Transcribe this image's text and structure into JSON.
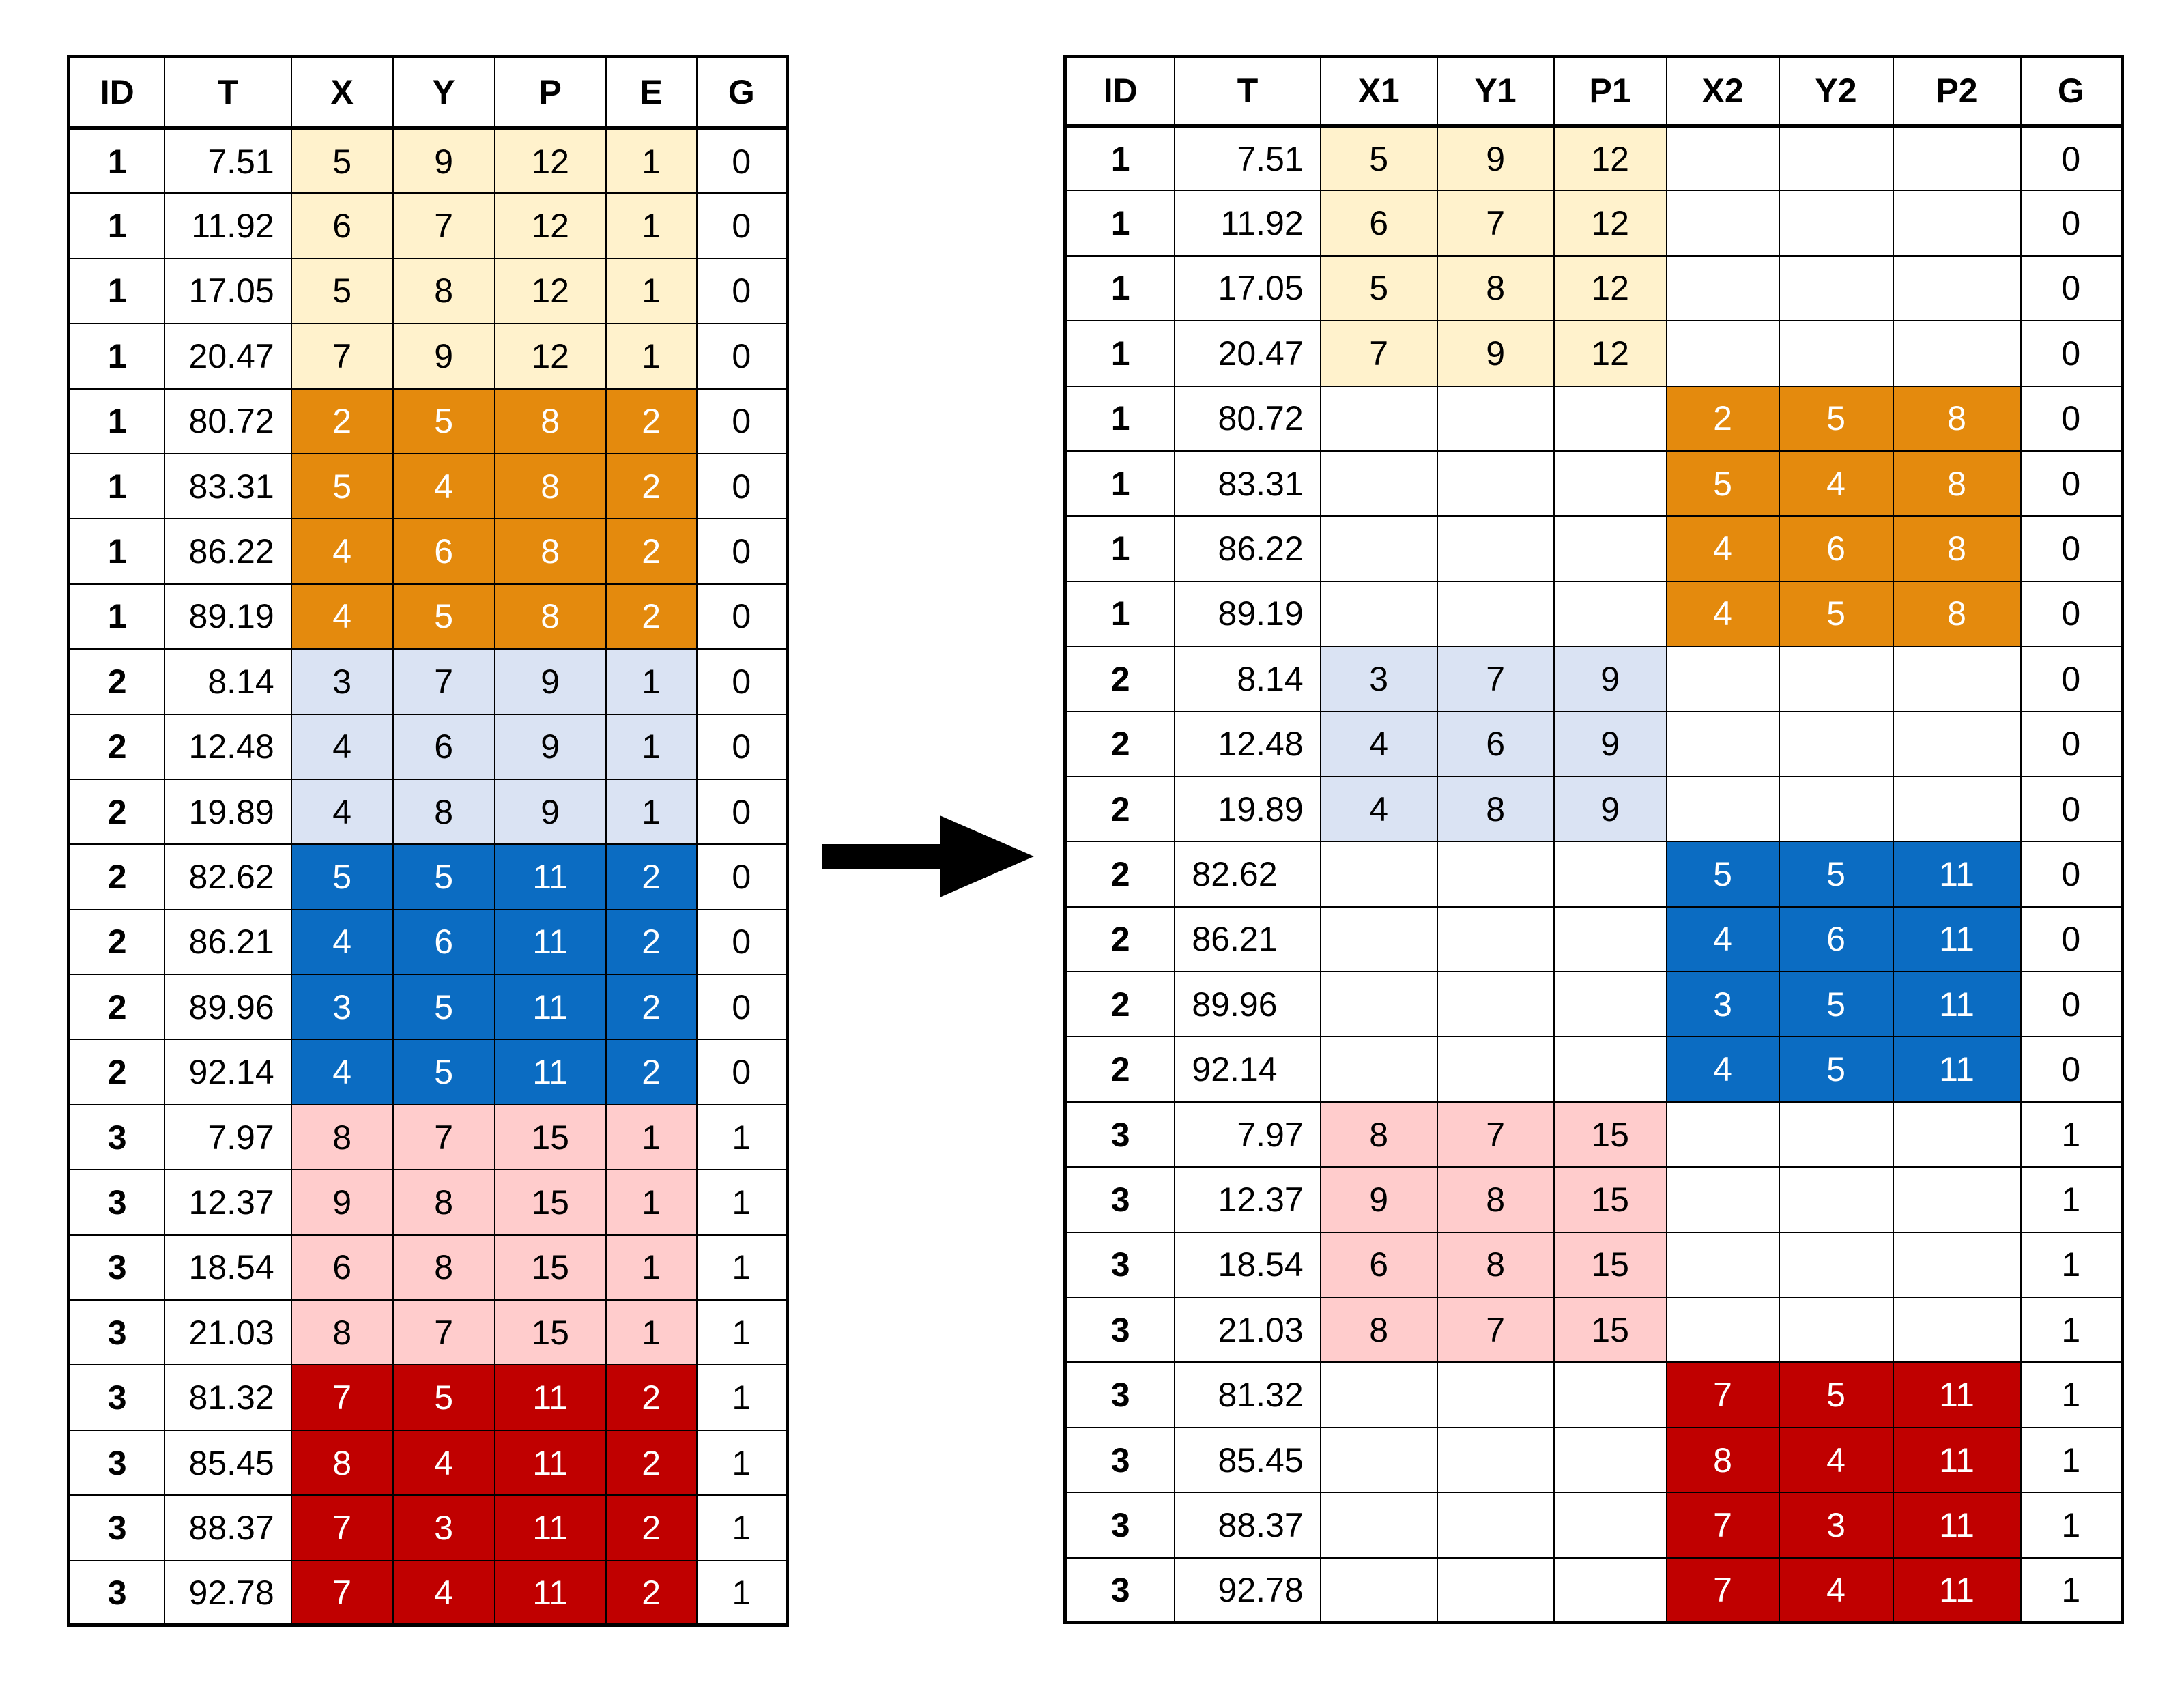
{
  "colors": {
    "pale_yellow": "#fff2cc",
    "orange": "#e48a0d",
    "pale_blue": "#dae3f3",
    "blue": "#0b6cc2",
    "pale_pink": "#ffcccc",
    "red": "#c00000",
    "white_text": "#ffffff",
    "black_text": "#000000"
  },
  "long_table": {
    "headers": [
      "ID",
      "T",
      "X",
      "Y",
      "P",
      "E",
      "G"
    ],
    "rows": [
      {
        "id": "1",
        "t": "7.51",
        "x": "5",
        "y": "9",
        "p": "12",
        "e": "1",
        "g": "0",
        "color": "pale_yellow"
      },
      {
        "id": "1",
        "t": "11.92",
        "x": "6",
        "y": "7",
        "p": "12",
        "e": "1",
        "g": "0",
        "color": "pale_yellow"
      },
      {
        "id": "1",
        "t": "17.05",
        "x": "5",
        "y": "8",
        "p": "12",
        "e": "1",
        "g": "0",
        "color": "pale_yellow"
      },
      {
        "id": "1",
        "t": "20.47",
        "x": "7",
        "y": "9",
        "p": "12",
        "e": "1",
        "g": "0",
        "color": "pale_yellow"
      },
      {
        "id": "1",
        "t": "80.72",
        "x": "2",
        "y": "5",
        "p": "8",
        "e": "2",
        "g": "0",
        "color": "orange"
      },
      {
        "id": "1",
        "t": "83.31",
        "x": "5",
        "y": "4",
        "p": "8",
        "e": "2",
        "g": "0",
        "color": "orange"
      },
      {
        "id": "1",
        "t": "86.22",
        "x": "4",
        "y": "6",
        "p": "8",
        "e": "2",
        "g": "0",
        "color": "orange"
      },
      {
        "id": "1",
        "t": "89.19",
        "x": "4",
        "y": "5",
        "p": "8",
        "e": "2",
        "g": "0",
        "color": "orange"
      },
      {
        "id": "2",
        "t": "8.14",
        "x": "3",
        "y": "7",
        "p": "9",
        "e": "1",
        "g": "0",
        "color": "pale_blue"
      },
      {
        "id": "2",
        "t": "12.48",
        "x": "4",
        "y": "6",
        "p": "9",
        "e": "1",
        "g": "0",
        "color": "pale_blue"
      },
      {
        "id": "2",
        "t": "19.89",
        "x": "4",
        "y": "8",
        "p": "9",
        "e": "1",
        "g": "0",
        "color": "pale_blue"
      },
      {
        "id": "2",
        "t": "82.62",
        "x": "5",
        "y": "5",
        "p": "11",
        "e": "2",
        "g": "0",
        "color": "blue"
      },
      {
        "id": "2",
        "t": "86.21",
        "x": "4",
        "y": "6",
        "p": "11",
        "e": "2",
        "g": "0",
        "color": "blue"
      },
      {
        "id": "2",
        "t": "89.96",
        "x": "3",
        "y": "5",
        "p": "11",
        "e": "2",
        "g": "0",
        "color": "blue"
      },
      {
        "id": "2",
        "t": "92.14",
        "x": "4",
        "y": "5",
        "p": "11",
        "e": "2",
        "g": "0",
        "color": "blue"
      },
      {
        "id": "3",
        "t": "7.97",
        "x": "8",
        "y": "7",
        "p": "15",
        "e": "1",
        "g": "1",
        "color": "pale_pink"
      },
      {
        "id": "3",
        "t": "12.37",
        "x": "9",
        "y": "8",
        "p": "15",
        "e": "1",
        "g": "1",
        "color": "pale_pink"
      },
      {
        "id": "3",
        "t": "18.54",
        "x": "6",
        "y": "8",
        "p": "15",
        "e": "1",
        "g": "1",
        "color": "pale_pink"
      },
      {
        "id": "3",
        "t": "21.03",
        "x": "8",
        "y": "7",
        "p": "15",
        "e": "1",
        "g": "1",
        "color": "pale_pink"
      },
      {
        "id": "3",
        "t": "81.32",
        "x": "7",
        "y": "5",
        "p": "11",
        "e": "2",
        "g": "1",
        "color": "red"
      },
      {
        "id": "3",
        "t": "85.45",
        "x": "8",
        "y": "4",
        "p": "11",
        "e": "2",
        "g": "1",
        "color": "red"
      },
      {
        "id": "3",
        "t": "88.37",
        "x": "7",
        "y": "3",
        "p": "11",
        "e": "2",
        "g": "1",
        "color": "red"
      },
      {
        "id": "3",
        "t": "92.78",
        "x": "7",
        "y": "4",
        "p": "11",
        "e": "2",
        "g": "1",
        "color": "red"
      }
    ]
  },
  "wide_table": {
    "headers": [
      "ID",
      "T",
      "X1",
      "Y1",
      "P1",
      "X2",
      "Y2",
      "P2",
      "G"
    ],
    "rows": [
      {
        "id": "1",
        "t": "7.51",
        "x1": "5",
        "y1": "9",
        "p1": "12",
        "x2": "",
        "y2": "",
        "p2": "",
        "g": "0",
        "color": "pale_yellow",
        "slot": 1
      },
      {
        "id": "1",
        "t": "11.92",
        "x1": "6",
        "y1": "7",
        "p1": "12",
        "x2": "",
        "y2": "",
        "p2": "",
        "g": "0",
        "color": "pale_yellow",
        "slot": 1
      },
      {
        "id": "1",
        "t": "17.05",
        "x1": "5",
        "y1": "8",
        "p1": "12",
        "x2": "",
        "y2": "",
        "p2": "",
        "g": "0",
        "color": "pale_yellow",
        "slot": 1
      },
      {
        "id": "1",
        "t": "20.47",
        "x1": "7",
        "y1": "9",
        "p1": "12",
        "x2": "",
        "y2": "",
        "p2": "",
        "g": "0",
        "color": "pale_yellow",
        "slot": 1
      },
      {
        "id": "1",
        "t": "80.72",
        "x1": "",
        "y1": "",
        "p1": "",
        "x2": "2",
        "y2": "5",
        "p2": "8",
        "g": "0",
        "color": "orange",
        "slot": 2
      },
      {
        "id": "1",
        "t": "83.31",
        "x1": "",
        "y1": "",
        "p1": "",
        "x2": "5",
        "y2": "4",
        "p2": "8",
        "g": "0",
        "color": "orange",
        "slot": 2
      },
      {
        "id": "1",
        "t": "86.22",
        "x1": "",
        "y1": "",
        "p1": "",
        "x2": "4",
        "y2": "6",
        "p2": "8",
        "g": "0",
        "color": "orange",
        "slot": 2
      },
      {
        "id": "1",
        "t": "89.19",
        "x1": "",
        "y1": "",
        "p1": "",
        "x2": "4",
        "y2": "5",
        "p2": "8",
        "g": "0",
        "color": "orange",
        "slot": 2
      },
      {
        "id": "2",
        "t": "8.14",
        "x1": "3",
        "y1": "7",
        "p1": "9",
        "x2": "",
        "y2": "",
        "p2": "",
        "g": "0",
        "color": "pale_blue",
        "slot": 1
      },
      {
        "id": "2",
        "t": "12.48",
        "x1": "4",
        "y1": "6",
        "p1": "9",
        "x2": "",
        "y2": "",
        "p2": "",
        "g": "0",
        "color": "pale_blue",
        "slot": 1
      },
      {
        "id": "2",
        "t": "19.89",
        "x1": "4",
        "y1": "8",
        "p1": "9",
        "x2": "",
        "y2": "",
        "p2": "",
        "g": "0",
        "color": "pale_blue",
        "slot": 1
      },
      {
        "id": "2",
        "t": "82.62",
        "x1": "",
        "y1": "",
        "p1": "",
        "x2": "5",
        "y2": "5",
        "p2": "11",
        "g": "0",
        "color": "blue",
        "slot": 2
      },
      {
        "id": "2",
        "t": "86.21",
        "x1": "",
        "y1": "",
        "p1": "",
        "x2": "4",
        "y2": "6",
        "p2": "11",
        "g": "0",
        "color": "blue",
        "slot": 2
      },
      {
        "id": "2",
        "t": "89.96",
        "x1": "",
        "y1": "",
        "p1": "",
        "x2": "3",
        "y2": "5",
        "p2": "11",
        "g": "0",
        "color": "blue",
        "slot": 2
      },
      {
        "id": "2",
        "t": "92.14",
        "x1": "",
        "y1": "",
        "p1": "",
        "x2": "4",
        "y2": "5",
        "p2": "11",
        "g": "0",
        "color": "blue",
        "slot": 2
      },
      {
        "id": "3",
        "t": "7.97",
        "x1": "8",
        "y1": "7",
        "p1": "15",
        "x2": "",
        "y2": "",
        "p2": "",
        "g": "1",
        "color": "pale_pink",
        "slot": 1
      },
      {
        "id": "3",
        "t": "12.37",
        "x1": "9",
        "y1": "8",
        "p1": "15",
        "x2": "",
        "y2": "",
        "p2": "",
        "g": "1",
        "color": "pale_pink",
        "slot": 1
      },
      {
        "id": "3",
        "t": "18.54",
        "x1": "6",
        "y1": "8",
        "p1": "15",
        "x2": "",
        "y2": "",
        "p2": "",
        "g": "1",
        "color": "pale_pink",
        "slot": 1
      },
      {
        "id": "3",
        "t": "21.03",
        "x1": "8",
        "y1": "7",
        "p1": "15",
        "x2": "",
        "y2": "",
        "p2": "",
        "g": "1",
        "color": "pale_pink",
        "slot": 1
      },
      {
        "id": "3",
        "t": "81.32",
        "x1": "",
        "y1": "",
        "p1": "",
        "x2": "7",
        "y2": "5",
        "p2": "11",
        "g": "1",
        "color": "red",
        "slot": 2
      },
      {
        "id": "3",
        "t": "85.45",
        "x1": "",
        "y1": "",
        "p1": "",
        "x2": "8",
        "y2": "4",
        "p2": "11",
        "g": "1",
        "color": "red",
        "slot": 2
      },
      {
        "id": "3",
        "t": "88.37",
        "x1": "",
        "y1": "",
        "p1": "",
        "x2": "7",
        "y2": "3",
        "p2": "11",
        "g": "1",
        "color": "red",
        "slot": 2
      },
      {
        "id": "3",
        "t": "92.78",
        "x1": "",
        "y1": "",
        "p1": "",
        "x2": "7",
        "y2": "4",
        "p2": "11",
        "g": "1",
        "color": "red",
        "slot": 2
      }
    ]
  },
  "arrow": {
    "icon": "right-arrow-icon",
    "color": "#000000"
  }
}
